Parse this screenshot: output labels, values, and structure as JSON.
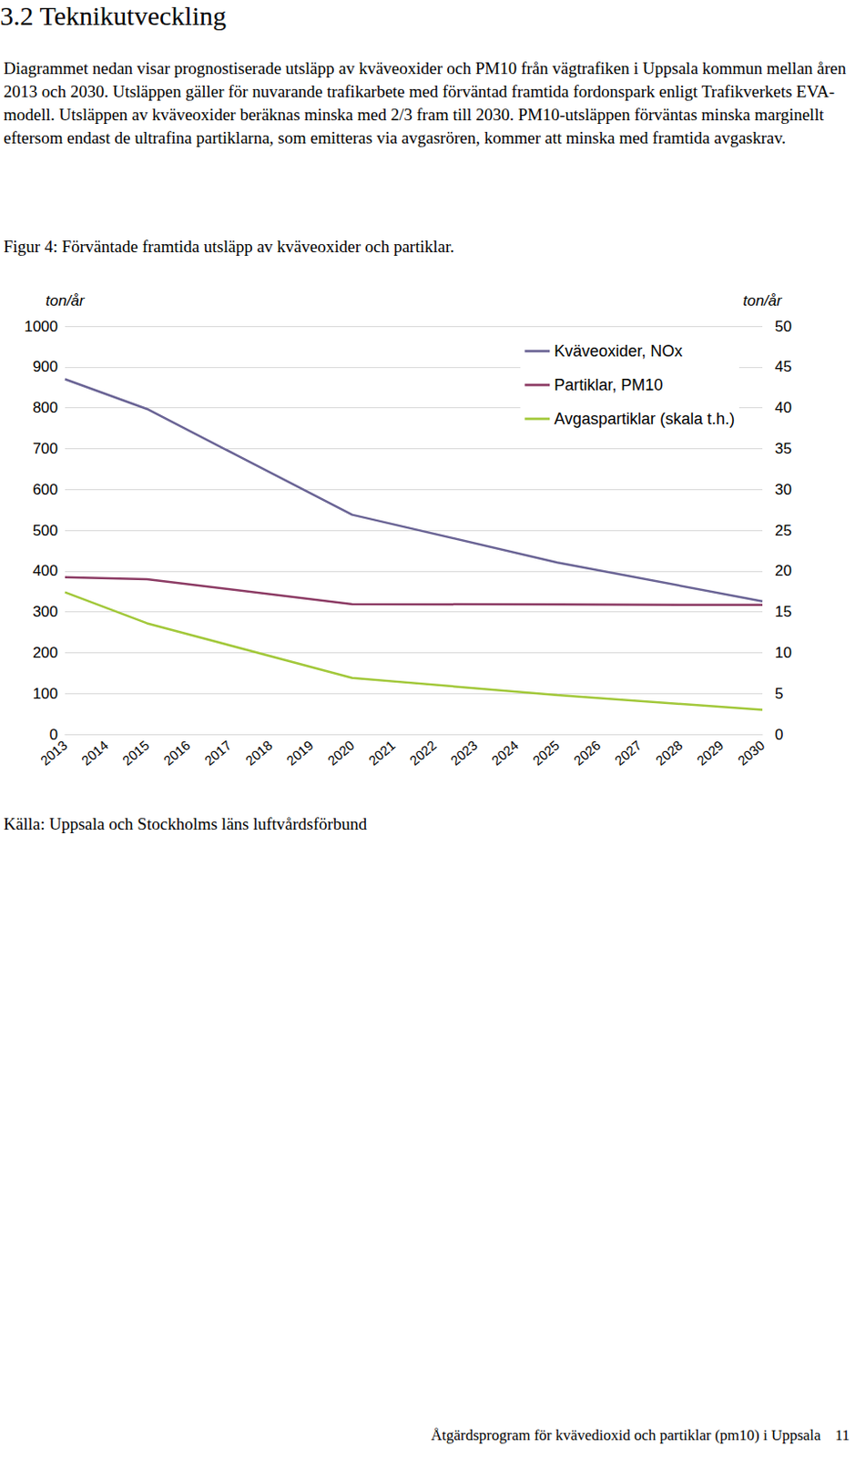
{
  "heading": "3.2 Teknikutveckling",
  "paragraph": "Diagrammet nedan visar prognostiserade utsläpp av kväveoxider och PM10 från vägtrafiken i Uppsala kommun mellan åren 2013 och 2030. Utsläppen gäller för nuvarande trafikarbete med förväntad framtida fordonspark enligt Trafikverkets EVA-modell. Utsläppen av kväveoxider beräknas minska med 2/3 fram till 2030. PM10-utsläppen förväntas minska marginellt eftersom endast de ultrafina partiklarna, som emitteras via avgasrören, kommer att minska med framtida avgaskrav.",
  "caption": "Figur 4: Förväntade framtida utsläpp av kväveoxider och partiklar.",
  "chart_data": {
    "type": "line",
    "y_label": "ton/år",
    "y2_label": "ton/år",
    "x": [
      2013,
      2015,
      2020,
      2025,
      2030
    ],
    "xlim": [
      2013,
      2030
    ],
    "xticks": [
      2013,
      2014,
      2015,
      2016,
      2017,
      2018,
      2019,
      2020,
      2021,
      2022,
      2023,
      2024,
      2025,
      2026,
      2027,
      2028,
      2029,
      2030
    ],
    "ylim": [
      0,
      1000
    ],
    "yticks": [
      0,
      100,
      200,
      300,
      400,
      500,
      600,
      700,
      800,
      900,
      1000
    ],
    "y2lim": [
      0,
      50
    ],
    "y2ticks": [
      0,
      5,
      10,
      15,
      20,
      25,
      30,
      35,
      40,
      45,
      50
    ],
    "grid": true,
    "legend": "upper right",
    "series": [
      {
        "name": "Kväveoxider, NOx",
        "color": "#6a6495",
        "values": [
          870,
          797,
          538,
          421,
          326
        ]
      },
      {
        "name": "Partiklar, PM10",
        "color": "#8c3b64",
        "values": [
          385,
          380,
          319,
          318,
          317
        ]
      },
      {
        "name": "Avgaspartiklar (skala t.h.)",
        "color": "#a2c83a",
        "axis": "y2",
        "values": [
          17.4,
          13.6,
          6.9,
          4.8,
          3.0
        ]
      }
    ]
  },
  "source": "Källa: Uppsala och Stockholms läns luftvårdsförbund",
  "footer": {
    "text": "Åtgärdsprogram för kvävedioxid och partiklar (pm10) i Uppsala",
    "page": 11
  }
}
